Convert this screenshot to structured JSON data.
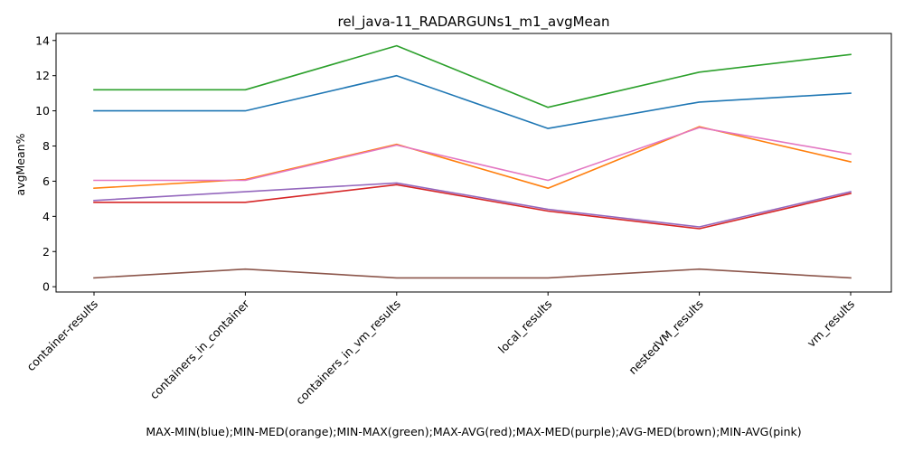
{
  "chart_data": {
    "type": "line",
    "title": "rel_java-11_RADARGUNs1_m1_avgMean",
    "xlabel": "MAX-MIN(blue);MIN-MED(orange);MIN-MAX(green);MAX-AVG(red);MAX-MED(purple);AVG-MED(brown);MIN-AVG(pink)",
    "ylabel": "avgMean%",
    "categories": [
      "container-results",
      "containers_in_container",
      "containers_in_vm_results",
      "local_results",
      "nestedVM_results",
      "vm_results"
    ],
    "ylim": [
      -0.3,
      14.4
    ],
    "yticks": [
      0,
      2,
      4,
      6,
      8,
      10,
      12,
      14
    ],
    "grid": false,
    "legend": "none",
    "series": [
      {
        "color": "#1f77b4",
        "values": [
          10.0,
          10.0,
          12.0,
          9.0,
          10.5,
          11.0
        ]
      },
      {
        "color": "#ff7f0e",
        "values": [
          5.6,
          6.1,
          8.1,
          5.6,
          9.1,
          7.1
        ]
      },
      {
        "color": "#2ca02c",
        "values": [
          11.2,
          11.2,
          13.7,
          10.2,
          12.2,
          13.2
        ]
      },
      {
        "color": "#d62728",
        "values": [
          4.8,
          4.8,
          5.8,
          4.3,
          3.3,
          5.3
        ]
      },
      {
        "color": "#9467bd",
        "values": [
          4.9,
          5.4,
          5.9,
          4.4,
          3.4,
          5.4
        ]
      },
      {
        "color": "#8c564b",
        "values": [
          0.5,
          1.0,
          0.5,
          0.5,
          1.0,
          0.5
        ]
      },
      {
        "color": "#e377c2",
        "values": [
          6.05,
          6.05,
          8.05,
          6.05,
          9.05,
          7.55
        ]
      }
    ]
  }
}
